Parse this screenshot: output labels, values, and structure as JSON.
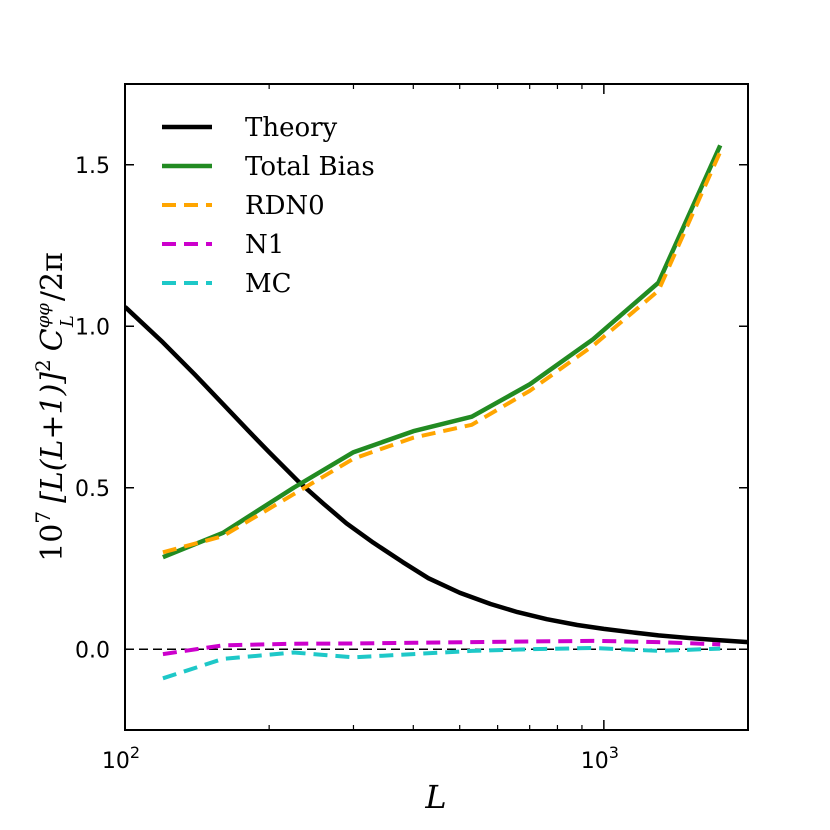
{
  "chart_data": {
    "type": "line",
    "xscale": "log",
    "xlabel": "L",
    "ylabel_parts": {
      "coef": "10",
      "coef_exp": "7",
      "bracket": "[L(L+1)]",
      "bracket_exp": "2",
      "C": "C",
      "C_sup": "φφ",
      "C_sub": "L",
      "tail": "/2π"
    },
    "xlim": [
      100,
      2000
    ],
    "ylim": [
      -0.25,
      1.75
    ],
    "x_ticks": [
      {
        "value": 100,
        "base": "10",
        "exp": "2"
      },
      {
        "value": 1000,
        "base": "10",
        "exp": "3"
      }
    ],
    "y_ticks": [
      {
        "value": 0.0,
        "label": "0.0"
      },
      {
        "value": 0.5,
        "label": "0.5"
      },
      {
        "value": 1.0,
        "label": "1.0"
      },
      {
        "value": 1.5,
        "label": "1.5"
      }
    ],
    "zero_line": 0.0,
    "legend_position": "upper-left",
    "series": [
      {
        "name": "Theory",
        "color": "#000000",
        "style": "solid",
        "x": [
          100,
          120,
          140,
          160,
          180,
          200,
          230,
          260,
          290,
          330,
          380,
          430,
          500,
          580,
          660,
          760,
          880,
          1000,
          1150,
          1300,
          1500,
          1700,
          2000
        ],
        "y": [
          1.06,
          0.95,
          0.85,
          0.76,
          0.68,
          0.61,
          0.52,
          0.45,
          0.39,
          0.33,
          0.27,
          0.22,
          0.175,
          0.14,
          0.115,
          0.093,
          0.075,
          0.063,
          0.052,
          0.043,
          0.035,
          0.029,
          0.022
        ]
      },
      {
        "name": "Total Bias",
        "color": "#228b22",
        "style": "solid",
        "x": [
          120,
          160,
          225,
          300,
          400,
          530,
          700,
          950,
          1300,
          1750
        ],
        "y": [
          0.285,
          0.36,
          0.5,
          0.61,
          0.675,
          0.72,
          0.82,
          0.96,
          1.135,
          1.56
        ]
      },
      {
        "name": "RDN0",
        "color": "#ffa500",
        "style": "dashed",
        "x": [
          120,
          160,
          225,
          300,
          400,
          530,
          700,
          950,
          1300,
          1750
        ],
        "y": [
          0.3,
          0.35,
          0.48,
          0.59,
          0.655,
          0.695,
          0.8,
          0.94,
          1.11,
          1.54
        ]
      },
      {
        "name": "N1",
        "color": "#cc00cc",
        "style": "dashed",
        "x": [
          120,
          160,
          225,
          300,
          400,
          530,
          700,
          950,
          1300,
          1750
        ],
        "y": [
          -0.015,
          0.012,
          0.017,
          0.018,
          0.02,
          0.022,
          0.024,
          0.026,
          0.022,
          0.015
        ]
      },
      {
        "name": "MC",
        "color": "#1ec8c8",
        "style": "dashed",
        "x": [
          120,
          160,
          225,
          300,
          400,
          530,
          700,
          950,
          1300,
          1750
        ],
        "y": [
          -0.09,
          -0.03,
          -0.01,
          -0.025,
          -0.015,
          -0.005,
          0.0,
          0.004,
          -0.005,
          0.002
        ]
      }
    ]
  }
}
